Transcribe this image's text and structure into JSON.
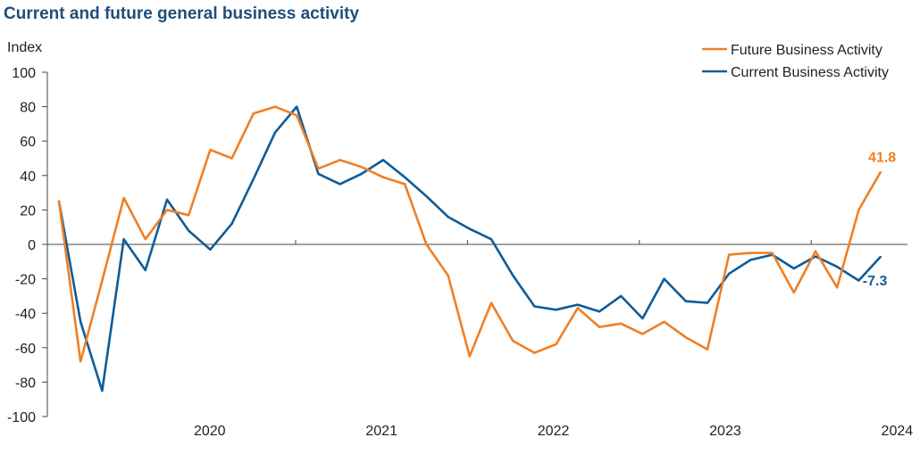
{
  "chart_data": {
    "type": "line",
    "title": "Current and future general business activity",
    "ylabel": "Index",
    "xlabel": "",
    "ylim": [
      -100,
      100
    ],
    "yticks": [
      100,
      80,
      60,
      40,
      20,
      0,
      -20,
      -40,
      -60,
      -80,
      -100
    ],
    "year_labels": [
      "2020",
      "2021",
      "2022",
      "2023",
      "2024"
    ],
    "series": [
      {
        "name": "Future Business Activity",
        "color": "#f07f24",
        "values": [
          25,
          -68,
          -21,
          27,
          3,
          20,
          17,
          55,
          50,
          76,
          80,
          75,
          44,
          49,
          45,
          39,
          35,
          0,
          -18,
          -65,
          -34,
          -56,
          -63,
          -58,
          -37,
          -48,
          -46,
          -52,
          -45,
          -54,
          -61,
          -6,
          -5,
          -5,
          -28,
          -4,
          -25,
          20,
          41.8
        ],
        "end_label": "41.8"
      },
      {
        "name": "Current Business Activity",
        "color": "#0e5c99",
        "values": [
          25,
          -45,
          -85,
          3,
          -15,
          26,
          8,
          -3,
          12,
          38,
          65,
          80,
          41,
          35,
          41,
          49,
          39,
          28,
          16,
          9,
          3,
          -18,
          -36,
          -38,
          -35,
          -39,
          -30,
          -43,
          -20,
          -33,
          -34,
          -17,
          -9,
          -6,
          -14,
          -7,
          -13,
          -21,
          -7.3
        ],
        "end_label": "-7.3"
      }
    ]
  }
}
